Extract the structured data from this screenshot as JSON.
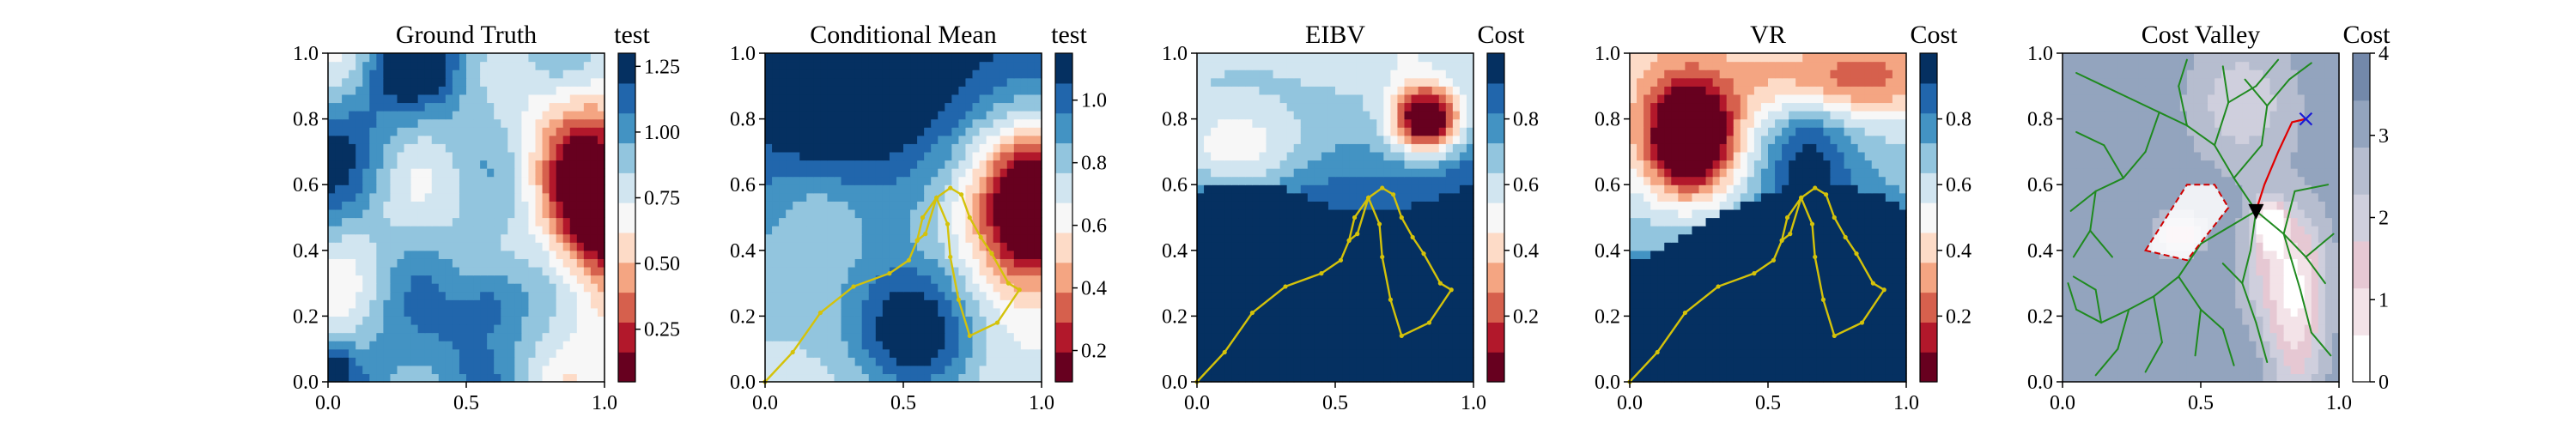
{
  "figure": {
    "background": "#ffffff"
  },
  "colormaps": {
    "RdBu": [
      "#67001f",
      "#b2182b",
      "#d6604d",
      "#f4a582",
      "#fddbc7",
      "#f7f7f7",
      "#d1e5f0",
      "#92c5de",
      "#4393c3",
      "#2166ac",
      "#053061"
    ],
    "cost": [
      "#ffffff",
      "#f3e3e8",
      "#e6c8d3",
      "#cfcfdd",
      "#b6bdcf",
      "#93a4be",
      "#7388aa"
    ]
  },
  "colors": {
    "path": "#d4c20a",
    "tree": "#1f8a1f",
    "route": "#e00000",
    "target": "#1a1ad6",
    "agent": "#000000",
    "obstacle": "#d00000"
  },
  "chart_data": [
    {
      "type": "heatmap",
      "panel_id": "gt",
      "title": "Ground Truth",
      "colorbar_label": "test",
      "xlim": [
        0,
        1
      ],
      "ylim": [
        0,
        1
      ],
      "xticks": [
        "0.0",
        "0.5",
        "1.0"
      ],
      "yticks": [
        "0.0",
        "0.2",
        "0.4",
        "0.6",
        "0.8",
        "1.0"
      ],
      "colorbar_ticks": [
        "0.25",
        "0.50",
        "0.75",
        "1.00",
        "1.25"
      ],
      "vmin": 0.05,
      "vmax": 1.3,
      "field": "ground_truth",
      "path": []
    },
    {
      "type": "heatmap",
      "panel_id": "cm",
      "title": "Conditional Mean",
      "colorbar_label": "test",
      "xlim": [
        0,
        1
      ],
      "ylim": [
        0,
        1
      ],
      "xticks": [
        "0.0",
        "0.5",
        "1.0"
      ],
      "yticks": [
        "0.0",
        "0.2",
        "0.4",
        "0.6",
        "0.8",
        "1.0"
      ],
      "colorbar_ticks": [
        "0.2",
        "0.4",
        "0.6",
        "0.8",
        "1.0"
      ],
      "vmin": 0.1,
      "vmax": 1.15,
      "field": "conditional_mean",
      "path": [
        [
          0.0,
          0.0
        ],
        [
          0.1,
          0.09
        ],
        [
          0.2,
          0.21
        ],
        [
          0.32,
          0.29
        ],
        [
          0.45,
          0.33
        ],
        [
          0.52,
          0.37
        ],
        [
          0.55,
          0.43
        ],
        [
          0.57,
          0.5
        ],
        [
          0.62,
          0.56
        ],
        [
          0.67,
          0.59
        ],
        [
          0.71,
          0.57
        ],
        [
          0.74,
          0.5
        ],
        [
          0.78,
          0.44
        ],
        [
          0.82,
          0.39
        ],
        [
          0.88,
          0.3
        ],
        [
          0.92,
          0.28
        ],
        [
          0.84,
          0.18
        ],
        [
          0.74,
          0.14
        ],
        [
          0.7,
          0.25
        ],
        [
          0.67,
          0.38
        ],
        [
          0.66,
          0.48
        ],
        [
          0.62,
          0.56
        ],
        [
          0.58,
          0.45
        ],
        [
          0.55,
          0.43
        ]
      ]
    },
    {
      "type": "heatmap",
      "panel_id": "eibv",
      "title": "EIBV",
      "colorbar_label": "Cost",
      "xlim": [
        0,
        1
      ],
      "ylim": [
        0,
        1
      ],
      "xticks": [
        "0.0",
        "0.5",
        "1.0"
      ],
      "yticks": [
        "0.0",
        "0.2",
        "0.4",
        "0.6",
        "0.8",
        "1.0"
      ],
      "colorbar_ticks": [
        "0.2",
        "0.4",
        "0.6",
        "0.8"
      ],
      "vmin": 0.0,
      "vmax": 1.0,
      "field": "eibv",
      "path": [
        [
          0.0,
          0.0
        ],
        [
          0.1,
          0.09
        ],
        [
          0.2,
          0.21
        ],
        [
          0.32,
          0.29
        ],
        [
          0.45,
          0.33
        ],
        [
          0.52,
          0.37
        ],
        [
          0.55,
          0.43
        ],
        [
          0.57,
          0.5
        ],
        [
          0.62,
          0.56
        ],
        [
          0.67,
          0.59
        ],
        [
          0.71,
          0.57
        ],
        [
          0.74,
          0.5
        ],
        [
          0.78,
          0.44
        ],
        [
          0.82,
          0.39
        ],
        [
          0.88,
          0.3
        ],
        [
          0.92,
          0.28
        ],
        [
          0.84,
          0.18
        ],
        [
          0.74,
          0.14
        ],
        [
          0.7,
          0.25
        ],
        [
          0.67,
          0.38
        ],
        [
          0.66,
          0.48
        ],
        [
          0.62,
          0.56
        ],
        [
          0.58,
          0.45
        ],
        [
          0.55,
          0.43
        ]
      ]
    },
    {
      "type": "heatmap",
      "panel_id": "vr",
      "title": "VR",
      "colorbar_label": "Cost",
      "xlim": [
        0,
        1
      ],
      "ylim": [
        0,
        1
      ],
      "xticks": [
        "0.0",
        "0.5",
        "1.0"
      ],
      "yticks": [
        "0.0",
        "0.2",
        "0.4",
        "0.6",
        "0.8",
        "1.0"
      ],
      "colorbar_ticks": [
        "0.2",
        "0.4",
        "0.6",
        "0.8"
      ],
      "vmin": 0.0,
      "vmax": 1.0,
      "field": "vr",
      "path": [
        [
          0.0,
          0.0
        ],
        [
          0.1,
          0.09
        ],
        [
          0.2,
          0.21
        ],
        [
          0.32,
          0.29
        ],
        [
          0.45,
          0.33
        ],
        [
          0.52,
          0.37
        ],
        [
          0.55,
          0.43
        ],
        [
          0.57,
          0.5
        ],
        [
          0.62,
          0.56
        ],
        [
          0.67,
          0.59
        ],
        [
          0.71,
          0.57
        ],
        [
          0.74,
          0.5
        ],
        [
          0.78,
          0.44
        ],
        [
          0.82,
          0.39
        ],
        [
          0.88,
          0.3
        ],
        [
          0.92,
          0.28
        ],
        [
          0.84,
          0.18
        ],
        [
          0.74,
          0.14
        ],
        [
          0.7,
          0.25
        ],
        [
          0.67,
          0.38
        ],
        [
          0.66,
          0.48
        ],
        [
          0.62,
          0.56
        ],
        [
          0.58,
          0.45
        ],
        [
          0.55,
          0.43
        ]
      ]
    },
    {
      "type": "heatmap",
      "panel_id": "cv",
      "title": "Cost Valley",
      "colorbar_label": "Cost",
      "xlim": [
        0,
        1
      ],
      "ylim": [
        0,
        1
      ],
      "xticks": [
        "0.0",
        "0.5",
        "1.0"
      ],
      "yticks": [
        "0.0",
        "0.2",
        "0.4",
        "0.6",
        "0.8",
        "1.0"
      ],
      "colorbar_ticks": [
        "0",
        "1",
        "2",
        "3",
        "4"
      ],
      "vmin": 0,
      "vmax": 4,
      "field": "cost_valley",
      "obstacle": [
        [
          0.3,
          0.4
        ],
        [
          0.45,
          0.6
        ],
        [
          0.55,
          0.6
        ],
        [
          0.6,
          0.53
        ],
        [
          0.45,
          0.37
        ],
        [
          0.3,
          0.4
        ]
      ],
      "agent": [
        0.7,
        0.52
      ],
      "target": [
        0.88,
        0.8
      ],
      "route": [
        [
          0.7,
          0.52
        ],
        [
          0.73,
          0.6
        ],
        [
          0.78,
          0.7
        ],
        [
          0.83,
          0.79
        ],
        [
          0.88,
          0.8
        ]
      ],
      "tree_segments": [
        [
          [
            0.7,
            0.52
          ],
          [
            0.6,
            0.47
          ]
        ],
        [
          [
            0.6,
            0.47
          ],
          [
            0.5,
            0.42
          ]
        ],
        [
          [
            0.5,
            0.42
          ],
          [
            0.42,
            0.32
          ]
        ],
        [
          [
            0.42,
            0.32
          ],
          [
            0.33,
            0.26
          ]
        ],
        [
          [
            0.33,
            0.26
          ],
          [
            0.24,
            0.22
          ]
        ],
        [
          [
            0.24,
            0.22
          ],
          [
            0.14,
            0.18
          ]
        ],
        [
          [
            0.14,
            0.18
          ],
          [
            0.05,
            0.22
          ]
        ],
        [
          [
            0.24,
            0.22
          ],
          [
            0.2,
            0.1
          ]
        ],
        [
          [
            0.2,
            0.1
          ],
          [
            0.12,
            0.02
          ]
        ],
        [
          [
            0.33,
            0.26
          ],
          [
            0.36,
            0.12
          ]
        ],
        [
          [
            0.36,
            0.12
          ],
          [
            0.3,
            0.03
          ]
        ],
        [
          [
            0.42,
            0.32
          ],
          [
            0.5,
            0.22
          ]
        ],
        [
          [
            0.5,
            0.22
          ],
          [
            0.48,
            0.08
          ]
        ],
        [
          [
            0.5,
            0.22
          ],
          [
            0.58,
            0.16
          ]
        ],
        [
          [
            0.58,
            0.16
          ],
          [
            0.62,
            0.05
          ]
        ],
        [
          [
            0.7,
            0.52
          ],
          [
            0.68,
            0.4
          ]
        ],
        [
          [
            0.68,
            0.4
          ],
          [
            0.65,
            0.3
          ]
        ],
        [
          [
            0.65,
            0.3
          ],
          [
            0.7,
            0.18
          ]
        ],
        [
          [
            0.7,
            0.18
          ],
          [
            0.74,
            0.06
          ]
        ],
        [
          [
            0.65,
            0.3
          ],
          [
            0.58,
            0.36
          ]
        ],
        [
          [
            0.7,
            0.52
          ],
          [
            0.8,
            0.45
          ]
        ],
        [
          [
            0.8,
            0.45
          ],
          [
            0.88,
            0.38
          ]
        ],
        [
          [
            0.88,
            0.38
          ],
          [
            0.95,
            0.3
          ]
        ],
        [
          [
            0.8,
            0.45
          ],
          [
            0.86,
            0.28
          ]
        ],
        [
          [
            0.86,
            0.28
          ],
          [
            0.9,
            0.15
          ]
        ],
        [
          [
            0.9,
            0.15
          ],
          [
            0.97,
            0.08
          ]
        ],
        [
          [
            0.88,
            0.38
          ],
          [
            0.98,
            0.45
          ]
        ],
        [
          [
            0.8,
            0.45
          ],
          [
            0.84,
            0.58
          ]
        ],
        [
          [
            0.84,
            0.58
          ],
          [
            0.96,
            0.6
          ]
        ],
        [
          [
            0.7,
            0.52
          ],
          [
            0.62,
            0.62
          ]
        ],
        [
          [
            0.62,
            0.62
          ],
          [
            0.55,
            0.72
          ]
        ],
        [
          [
            0.55,
            0.72
          ],
          [
            0.45,
            0.78
          ]
        ],
        [
          [
            0.45,
            0.78
          ],
          [
            0.35,
            0.82
          ]
        ],
        [
          [
            0.35,
            0.82
          ],
          [
            0.25,
            0.86
          ]
        ],
        [
          [
            0.25,
            0.86
          ],
          [
            0.15,
            0.9
          ]
        ],
        [
          [
            0.15,
            0.9
          ],
          [
            0.05,
            0.94
          ]
        ],
        [
          [
            0.45,
            0.78
          ],
          [
            0.42,
            0.9
          ]
        ],
        [
          [
            0.42,
            0.9
          ],
          [
            0.45,
            0.98
          ]
        ],
        [
          [
            0.35,
            0.82
          ],
          [
            0.3,
            0.7
          ]
        ],
        [
          [
            0.3,
            0.7
          ],
          [
            0.22,
            0.62
          ]
        ],
        [
          [
            0.22,
            0.62
          ],
          [
            0.12,
            0.58
          ]
        ],
        [
          [
            0.12,
            0.58
          ],
          [
            0.03,
            0.52
          ]
        ],
        [
          [
            0.22,
            0.62
          ],
          [
            0.15,
            0.72
          ]
        ],
        [
          [
            0.15,
            0.72
          ],
          [
            0.05,
            0.76
          ]
        ],
        [
          [
            0.12,
            0.58
          ],
          [
            0.1,
            0.46
          ]
        ],
        [
          [
            0.1,
            0.46
          ],
          [
            0.04,
            0.38
          ]
        ],
        [
          [
            0.1,
            0.46
          ],
          [
            0.18,
            0.38
          ]
        ],
        [
          [
            0.55,
            0.72
          ],
          [
            0.6,
            0.85
          ]
        ],
        [
          [
            0.6,
            0.85
          ],
          [
            0.58,
            0.96
          ]
        ],
        [
          [
            0.6,
            0.85
          ],
          [
            0.7,
            0.9
          ]
        ],
        [
          [
            0.7,
            0.9
          ],
          [
            0.78,
            0.98
          ]
        ],
        [
          [
            0.62,
            0.62
          ],
          [
            0.72,
            0.72
          ]
        ],
        [
          [
            0.72,
            0.72
          ],
          [
            0.74,
            0.84
          ]
        ],
        [
          [
            0.74,
            0.84
          ],
          [
            0.82,
            0.92
          ]
        ],
        [
          [
            0.82,
            0.92
          ],
          [
            0.9,
            0.97
          ]
        ],
        [
          [
            0.74,
            0.84
          ],
          [
            0.66,
            0.92
          ]
        ],
        [
          [
            0.05,
            0.22
          ],
          [
            0.02,
            0.3
          ]
        ],
        [
          [
            0.14,
            0.18
          ],
          [
            0.12,
            0.28
          ]
        ],
        [
          [
            0.12,
            0.28
          ],
          [
            0.04,
            0.32
          ]
        ]
      ],
      "path": []
    }
  ]
}
